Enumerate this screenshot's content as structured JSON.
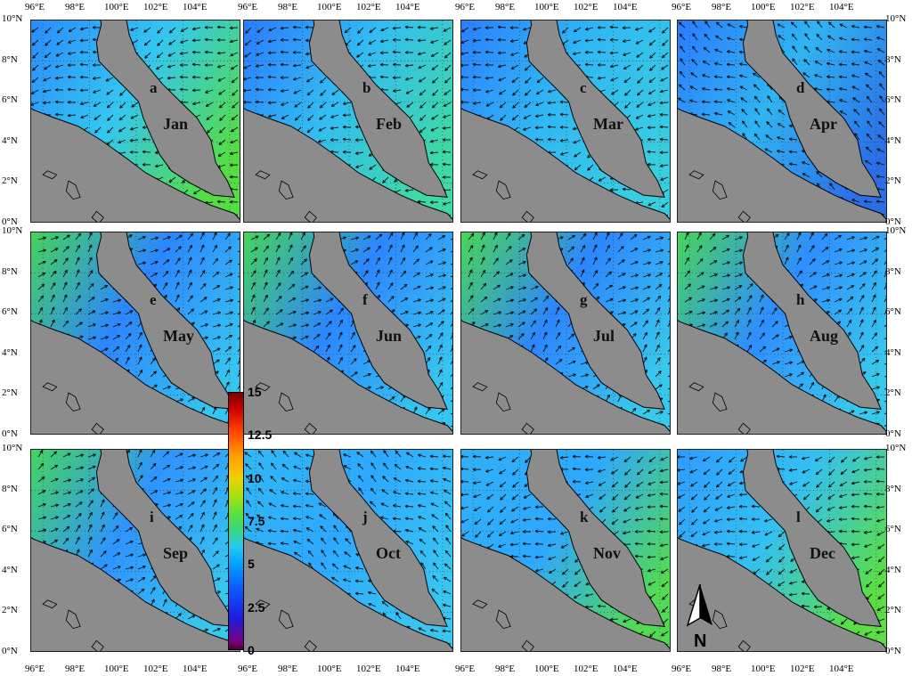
{
  "panels": [
    {
      "letter": "a",
      "month": "Jan"
    },
    {
      "letter": "b",
      "month": "Feb"
    },
    {
      "letter": "c",
      "month": "Mar"
    },
    {
      "letter": "d",
      "month": "Apr"
    },
    {
      "letter": "e",
      "month": "May"
    },
    {
      "letter": "f",
      "month": "Jun"
    },
    {
      "letter": "g",
      "month": "Jul"
    },
    {
      "letter": "h",
      "month": "Aug"
    },
    {
      "letter": "i",
      "month": "Sep"
    },
    {
      "letter": "j",
      "month": "Oct"
    },
    {
      "letter": "k",
      "month": "Nov"
    },
    {
      "letter": "l",
      "month": "Dec"
    }
  ],
  "axes": {
    "lon_ticks": [
      "96°E",
      "98°E",
      "100°E",
      "102°E",
      "104°E"
    ],
    "lat_ticks": [
      "10°N",
      "8°N",
      "6°N",
      "4°N",
      "2°N",
      "0°N"
    ]
  },
  "colorbar": {
    "ticks": [
      "15",
      "12.5",
      "10",
      "7.5",
      "5",
      "2.5",
      "0"
    ],
    "range": [
      0,
      15
    ]
  },
  "north_arrow": {
    "label": "N"
  },
  "colors": {
    "land": "#8c8c8c",
    "sea_low": "#1a66ff",
    "sea_mid": "#29b6f6",
    "sea_high": "#44dd55"
  }
}
